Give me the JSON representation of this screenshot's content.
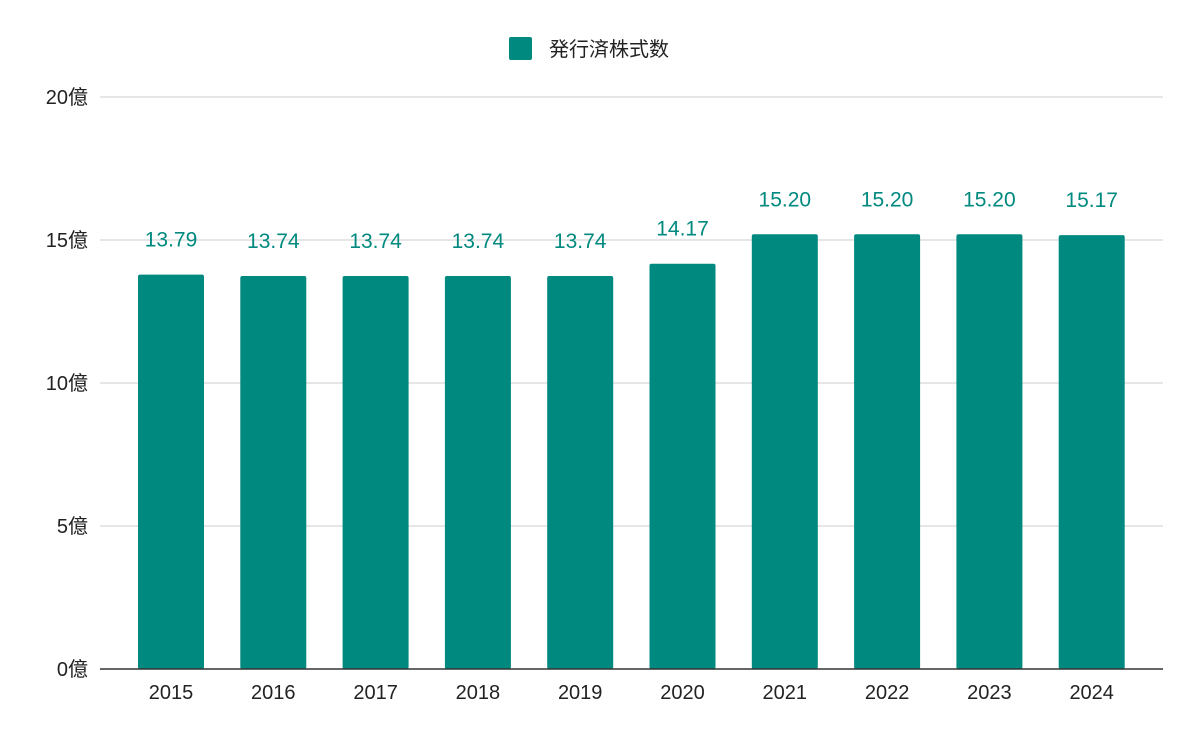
{
  "chart_data": {
    "type": "bar",
    "categories": [
      "2015",
      "2016",
      "2017",
      "2018",
      "2019",
      "2020",
      "2021",
      "2022",
      "2023",
      "2024"
    ],
    "series": [
      {
        "name": "発行済株式数",
        "values": [
          13.79,
          13.74,
          13.74,
          13.74,
          13.74,
          14.17,
          15.2,
          15.2,
          15.2,
          15.17
        ],
        "labels": [
          "13.79",
          "13.74",
          "13.74",
          "13.74",
          "13.74",
          "14.17",
          "15.20",
          "15.20",
          "15.20",
          "15.17"
        ],
        "color": "#00897f"
      }
    ],
    "y_unit": "億",
    "ylim": [
      0,
      20
    ],
    "yticks": [
      0,
      5,
      10,
      15,
      20
    ],
    "ytick_labels": [
      "0億",
      "5億",
      "10億",
      "15億",
      "20億"
    ],
    "grid": true,
    "legend_position": "top-center"
  }
}
